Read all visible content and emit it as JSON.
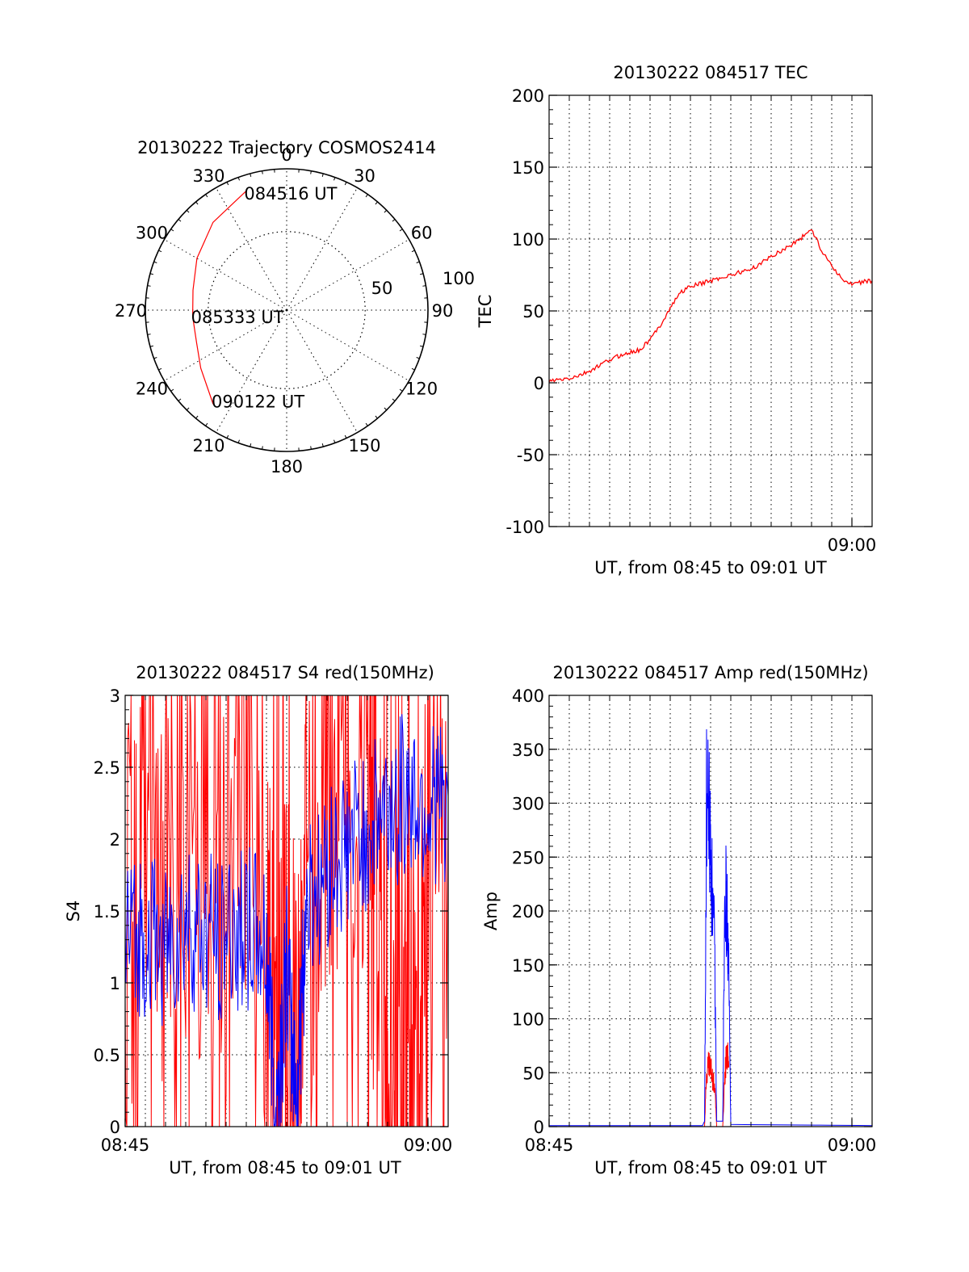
{
  "chart_data": [
    {
      "type": "polar",
      "title": "20130222 Trajectory COSMOS2414",
      "azimuth_labels": [
        "0",
        "30",
        "60",
        "90",
        "120",
        "150",
        "180",
        "210",
        "240",
        "270",
        "300",
        "330"
      ],
      "radial_labels": [
        "50",
        "100"
      ],
      "rlim": [
        0,
        90
      ],
      "grid": true,
      "trajectory": {
        "color": "#ff0000",
        "points": [
          {
            "az": 341,
            "el": 10
          },
          {
            "az": 320,
            "el": 17
          },
          {
            "az": 300,
            "el": 24
          },
          {
            "az": 282,
            "el": 29
          },
          {
            "az": 266,
            "el": 30
          },
          {
            "az": 250,
            "el": 29
          },
          {
            "az": 236,
            "el": 24
          },
          {
            "az": 218,
            "el": 14
          }
        ],
        "labels": [
          {
            "text": "084516 UT",
            "az": 341,
            "el": 10
          },
          {
            "text": "085333 UT",
            "az": 266,
            "el": 30
          },
          {
            "text": "090122 UT",
            "az": 218,
            "el": 14
          }
        ]
      }
    },
    {
      "type": "line",
      "title": "20130222 084517 TEC",
      "xlabel": "UT, from 08:45 to 09:01 UT",
      "ylabel": "TEC",
      "xlim": [
        0,
        16
      ],
      "ylim": [
        -100,
        200
      ],
      "yticks": [
        -100,
        -50,
        0,
        50,
        100,
        150,
        200
      ],
      "xticks": [
        {
          "value": 15,
          "label": "09:00"
        }
      ],
      "grid": true,
      "series": [
        {
          "color": "#ff0000",
          "x": [
            0,
            0.5,
            1,
            1.5,
            2,
            2.5,
            3,
            3.5,
            4,
            4.5,
            5,
            5.5,
            6,
            6.5,
            7,
            7.5,
            8,
            8.5,
            9,
            9.5,
            10,
            10.5,
            11,
            11.5,
            12,
            12.5,
            13,
            13.5,
            14,
            14.5,
            15,
            15.5,
            16
          ],
          "values": [
            1,
            2,
            3,
            5,
            8,
            12,
            16,
            19,
            21,
            23,
            30,
            40,
            52,
            63,
            67,
            69,
            71,
            73,
            75,
            77,
            79,
            83,
            88,
            92,
            96,
            101,
            107,
            92,
            82,
            72,
            68,
            70,
            71
          ]
        }
      ]
    },
    {
      "type": "line",
      "title": "20130222 084517 S4 red(150MHz)",
      "xlabel": "UT, from 08:45 to 09:01 UT",
      "ylabel": "S4",
      "xlim": [
        0,
        16
      ],
      "ylim": [
        0,
        3
      ],
      "yticks": [
        0,
        0.5,
        1,
        1.5,
        2,
        2.5,
        3
      ],
      "xticks": [
        {
          "value": 0,
          "label": "08:45"
        },
        {
          "value": 15,
          "label": "09:00"
        }
      ],
      "grid": true,
      "series": [
        {
          "color": "#ff0000",
          "x": [
            0,
            1,
            2,
            3,
            4,
            5,
            6,
            7,
            7.5,
            8,
            8.5,
            9,
            10,
            11,
            12,
            12.5,
            13,
            13.5,
            14,
            14.5,
            15,
            16
          ],
          "values": [
            1.5,
            2.0,
            1.6,
            2.2,
            2.0,
            1.8,
            2.4,
            1.3,
            0.2,
            1.2,
            0.3,
            1.5,
            2.6,
            2.5,
            2.2,
            1.5,
            0.3,
            0.5,
            0.8,
            0.4,
            2.0,
            2.2
          ]
        },
        {
          "color": "#0000ff",
          "x": [
            0,
            1,
            2,
            3,
            4,
            5,
            6,
            7,
            7.5,
            8,
            8.5,
            9,
            10,
            11,
            12,
            13,
            14,
            15,
            16
          ],
          "values": [
            1.3,
            1.35,
            1.25,
            1.4,
            1.3,
            1.35,
            1.4,
            1.2,
            0.1,
            1.1,
            0.15,
            1.6,
            1.8,
            1.9,
            2.1,
            2.2,
            2.3,
            2.2,
            2.3
          ]
        }
      ]
    },
    {
      "type": "line",
      "title": "20130222 084517 Amp red(150MHz)",
      "xlabel": "UT, from 08:45 to 09:01 UT",
      "ylabel": "Amp",
      "xlim": [
        0,
        16
      ],
      "ylim": [
        0,
        400
      ],
      "yticks": [
        0,
        50,
        100,
        150,
        200,
        250,
        300,
        350,
        400
      ],
      "xticks": [
        {
          "value": 0,
          "label": "08:45"
        },
        {
          "value": 15,
          "label": "09:00"
        }
      ],
      "grid": true,
      "series": [
        {
          "color": "#ff0000",
          "x": [
            7.7,
            7.8,
            7.9,
            8.0,
            8.1,
            8.2,
            8.3,
            8.4,
            8.6,
            8.7,
            8.8,
            8.9
          ],
          "values": [
            0,
            50,
            60,
            55,
            45,
            40,
            0,
            0,
            0,
            45,
            70,
            55
          ]
        },
        {
          "color": "#0000ff",
          "x": [
            0,
            7.6,
            7.7,
            7.8,
            7.9,
            8.0,
            8.1,
            8.2,
            8.3,
            8.5,
            8.6,
            8.7,
            8.8,
            8.9,
            9.0,
            16
          ],
          "values": [
            1,
            1,
            5,
            300,
            290,
            250,
            200,
            160,
            5,
            5,
            5,
            230,
            200,
            140,
            2,
            1
          ]
        }
      ]
    }
  ]
}
